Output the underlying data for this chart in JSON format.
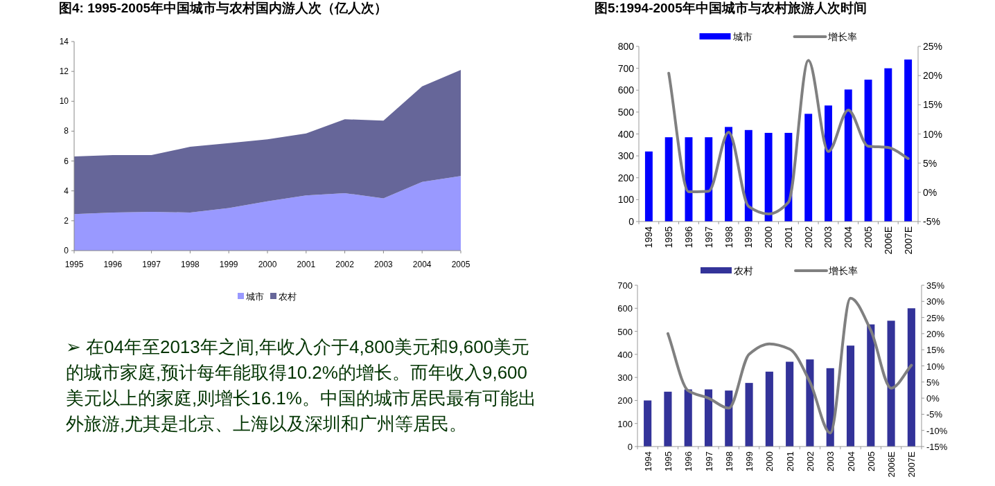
{
  "chart_data": [
    {
      "type": "area",
      "stacked": true,
      "title": "图4: 1995-2005年中国城市与农村国内游人次（亿人次）",
      "categories": [
        "1995",
        "1996",
        "1997",
        "1998",
        "1999",
        "2000",
        "2001",
        "2002",
        "2003",
        "2004",
        "2005"
      ],
      "series": [
        {
          "name": "城市",
          "color": "#9999ff",
          "values": [
            2.45,
            2.55,
            2.6,
            2.55,
            2.85,
            3.3,
            3.7,
            3.85,
            3.5,
            4.6,
            5.0
          ]
        },
        {
          "name": "农村",
          "color": "#666699",
          "values": [
            3.85,
            3.85,
            3.8,
            4.4,
            4.35,
            4.15,
            4.15,
            4.95,
            5.2,
            6.4,
            7.1
          ]
        }
      ],
      "ylim": [
        0,
        14
      ],
      "yticks": [
        0,
        2,
        4,
        6,
        8,
        10,
        12,
        14
      ],
      "legend": "bottom",
      "grid": false
    },
    {
      "type": "bar",
      "title": "图5:1994-2005年中国城市与农村旅游人次时间",
      "categories": [
        "1994",
        "1995",
        "1996",
        "1997",
        "1998",
        "1999",
        "2000",
        "2001",
        "2002",
        "2003",
        "2004",
        "2005",
        "2006E",
        "2007E"
      ],
      "series": [
        {
          "name": "城市",
          "type": "bar",
          "color": "#0000ff",
          "values": [
            320,
            385,
            385,
            385,
            432,
            418,
            405,
            405,
            492,
            530,
            603,
            648,
            700,
            740
          ]
        },
        {
          "name": "增长率",
          "type": "line",
          "axis": "y2",
          "color": "#808080",
          "values": [
            null,
            20.4,
            0.1,
            0.2,
            10.3,
            -2.4,
            -3.7,
            -1.7,
            22.6,
            7.0,
            14.1,
            7.9,
            7.7,
            5.8
          ]
        }
      ],
      "ylim": [
        0,
        800
      ],
      "yticks": [
        0,
        100,
        200,
        300,
        400,
        500,
        600,
        700,
        800
      ],
      "y2lim": [
        -5,
        25
      ],
      "y2ticks": [
        {
          "value": -5,
          "label": "-5%"
        },
        {
          "value": 0,
          "label": "0%"
        },
        {
          "value": 5,
          "label": "5%"
        },
        {
          "value": 10,
          "label": "10%"
        },
        {
          "value": 15,
          "label": "15%"
        },
        {
          "value": 20,
          "label": "20%"
        },
        {
          "value": 25,
          "label": "25%"
        }
      ],
      "legend": "top",
      "grid": false
    },
    {
      "type": "bar",
      "categories": [
        "1994",
        "1995",
        "1996",
        "1997",
        "1998",
        "1999",
        "2000",
        "2001",
        "2002",
        "2003",
        "2004",
        "2005",
        "2006E",
        "2007E"
      ],
      "series": [
        {
          "name": "农村",
          "type": "bar",
          "color": "#333399",
          "values": [
            200,
            238,
            248,
            248,
            243,
            276,
            325,
            368,
            378,
            340,
            438,
            530,
            546,
            600
          ]
        },
        {
          "name": "增长率",
          "type": "line",
          "axis": "y2",
          "color": "#808080",
          "values": [
            null,
            20.0,
            2.3,
            0.0,
            -3.1,
            13.6,
            16.8,
            15.2,
            5.0,
            -10.8,
            31.0,
            21.0,
            3.1,
            10.2
          ]
        }
      ],
      "ylim": [
        0,
        700
      ],
      "yticks": [
        0,
        100,
        200,
        300,
        400,
        500,
        600,
        700
      ],
      "y2lim": [
        -15,
        35
      ],
      "y2ticks": [
        {
          "value": -15,
          "label": "-15%"
        },
        {
          "value": -10,
          "label": "-10%"
        },
        {
          "value": -5,
          "label": "-5%"
        },
        {
          "value": 0,
          "label": "0%"
        },
        {
          "value": 5,
          "label": "5%"
        },
        {
          "value": 10,
          "label": "10%"
        },
        {
          "value": 15,
          "label": "15%"
        },
        {
          "value": 20,
          "label": "20%"
        },
        {
          "value": 25,
          "label": "25%"
        },
        {
          "value": 30,
          "label": "30%"
        },
        {
          "value": 35,
          "label": "35%"
        }
      ],
      "legend": "top",
      "grid": false
    },
    {
      "type": "other",
      "annotations": [
        "➢  在04年至2013年之间,年收入介于4,800美元和9,600美元的城市家庭,预计每年能取得10.2%的增长。而年收入9,600美元以上的家庭,则增长16.1%。中国的城市居民最有可能出外旅游,尤其是北京、上海以及深圳和广州等居民。"
      ]
    }
  ]
}
